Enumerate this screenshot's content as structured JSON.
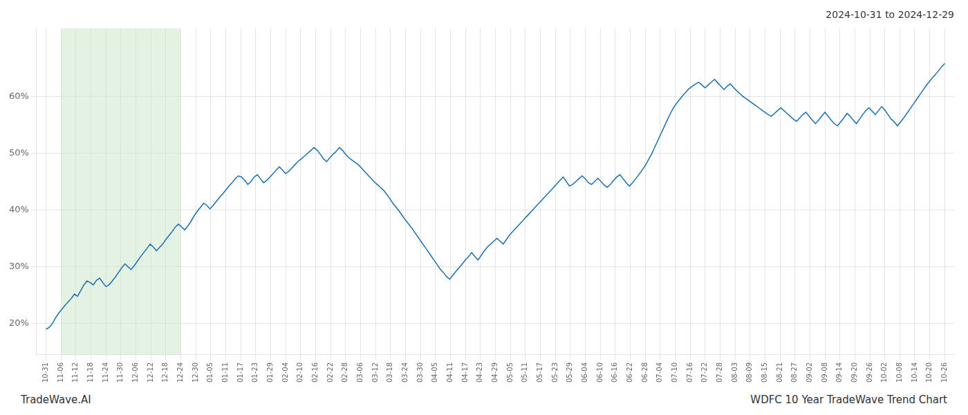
{
  "chart_data": {
    "type": "line",
    "title": "2024-10-31 to 2024-12-29",
    "annotations": [
      {
        "text": "TradeWave.AI"
      },
      {
        "text": "WDFC 10 Year TradeWave Trend Chart"
      }
    ],
    "color": "#1a6faf",
    "grid": true,
    "spans": [
      {
        "x": [
          4.75,
          42.75
        ],
        "color": "#c8e6c8"
      }
    ],
    "xlim": [
      -3,
      288
    ],
    "ylim": [
      0.145,
      0.72
    ],
    "yticks": [
      {
        "value": 0.2,
        "label": "20%"
      },
      {
        "value": 0.3,
        "label": "30%"
      },
      {
        "value": 0.4,
        "label": "40%"
      },
      {
        "value": 0.5,
        "label": "50%"
      },
      {
        "value": 0.6,
        "label": "60%"
      }
    ],
    "xticks": [
      {
        "value": 0,
        "label": "10-31"
      },
      {
        "value": 4.75,
        "label": "11-06"
      },
      {
        "value": 9.5,
        "label": "11-12"
      },
      {
        "value": 14.25,
        "label": "11-18"
      },
      {
        "value": 19,
        "label": "11-24"
      },
      {
        "value": 23.75,
        "label": "11-30"
      },
      {
        "value": 28.5,
        "label": "12-06"
      },
      {
        "value": 33.25,
        "label": "12-12"
      },
      {
        "value": 38,
        "label": "12-18"
      },
      {
        "value": 42.75,
        "label": "12-24"
      },
      {
        "value": 47.5,
        "label": "12-30"
      },
      {
        "value": 52.25,
        "label": "01-05"
      },
      {
        "value": 57,
        "label": "01-11"
      },
      {
        "value": 61.75,
        "label": "01-17"
      },
      {
        "value": 66.5,
        "label": "01-23"
      },
      {
        "value": 71.25,
        "label": "01-29"
      },
      {
        "value": 76,
        "label": "02-04"
      },
      {
        "value": 80.75,
        "label": "02-10"
      },
      {
        "value": 85.5,
        "label": "02-16"
      },
      {
        "value": 90.25,
        "label": "02-22"
      },
      {
        "value": 95,
        "label": "02-28"
      },
      {
        "value": 99.75,
        "label": "03-06"
      },
      {
        "value": 104.5,
        "label": "03-12"
      },
      {
        "value": 109.25,
        "label": "03-18"
      },
      {
        "value": 114,
        "label": "03-24"
      },
      {
        "value": 118.75,
        "label": "03-30"
      },
      {
        "value": 123.5,
        "label": "04-05"
      },
      {
        "value": 128.25,
        "label": "04-11"
      },
      {
        "value": 133,
        "label": "04-17"
      },
      {
        "value": 137.75,
        "label": "04-23"
      },
      {
        "value": 142.5,
        "label": "04-29"
      },
      {
        "value": 147.25,
        "label": "05-05"
      },
      {
        "value": 152,
        "label": "05-11"
      },
      {
        "value": 156.75,
        "label": "05-17"
      },
      {
        "value": 161.5,
        "label": "05-23"
      },
      {
        "value": 166.25,
        "label": "05-29"
      },
      {
        "value": 171,
        "label": "06-04"
      },
      {
        "value": 175.75,
        "label": "06-10"
      },
      {
        "value": 180.5,
        "label": "06-16"
      },
      {
        "value": 185.25,
        "label": "06-22"
      },
      {
        "value": 190,
        "label": "06-28"
      },
      {
        "value": 194.75,
        "label": "07-04"
      },
      {
        "value": 199.5,
        "label": "07-10"
      },
      {
        "value": 204.25,
        "label": "07-16"
      },
      {
        "value": 209,
        "label": "07-22"
      },
      {
        "value": 213.75,
        "label": "07-28"
      },
      {
        "value": 218.5,
        "label": "08-03"
      },
      {
        "value": 223.25,
        "label": "08-09"
      },
      {
        "value": 228,
        "label": "08-15"
      },
      {
        "value": 232.75,
        "label": "08-21"
      },
      {
        "value": 237.5,
        "label": "08-27"
      },
      {
        "value": 242.25,
        "label": "09-02"
      },
      {
        "value": 247,
        "label": "09-08"
      },
      {
        "value": 251.75,
        "label": "09-14"
      },
      {
        "value": 256.5,
        "label": "09-20"
      },
      {
        "value": 261.25,
        "label": "09-26"
      },
      {
        "value": 266,
        "label": "10-02"
      },
      {
        "value": 270.75,
        "label": "10-08"
      },
      {
        "value": 275.5,
        "label": "10-14"
      },
      {
        "value": 280.25,
        "label": "10-20"
      },
      {
        "value": 285,
        "label": "10-26"
      }
    ],
    "x": [
      0,
      1,
      2,
      3,
      4,
      5,
      6,
      7,
      8,
      9,
      10,
      11,
      12,
      13,
      14,
      15,
      16,
      17,
      18,
      19,
      20,
      21,
      22,
      23,
      24,
      25,
      26,
      27,
      28,
      29,
      30,
      31,
      32,
      33,
      34,
      35,
      36,
      37,
      38,
      39,
      40,
      41,
      42,
      43,
      44,
      45,
      46,
      47,
      48,
      49,
      50,
      51,
      52,
      53,
      54,
      55,
      56,
      57,
      58,
      59,
      60,
      61,
      62,
      63,
      64,
      65,
      66,
      67,
      68,
      69,
      70,
      71,
      72,
      73,
      74,
      75,
      76,
      77,
      78,
      79,
      80,
      81,
      82,
      83,
      84,
      85,
      86,
      87,
      88,
      89,
      90,
      91,
      92,
      93,
      94,
      95,
      96,
      97,
      98,
      99,
      100,
      101,
      102,
      103,
      104,
      105,
      106,
      107,
      108,
      109,
      110,
      111,
      112,
      113,
      114,
      115,
      116,
      117,
      118,
      119,
      120,
      121,
      122,
      123,
      124,
      125,
      126,
      127,
      128,
      129,
      130,
      131,
      132,
      133,
      134,
      135,
      136,
      137,
      138,
      139,
      140,
      141,
      142,
      143,
      144,
      145,
      146,
      147,
      148,
      149,
      150,
      151,
      152,
      153,
      154,
      155,
      156,
      157,
      158,
      159,
      160,
      161,
      162,
      163,
      164,
      165,
      166,
      167,
      168,
      169,
      170,
      171,
      172,
      173,
      174,
      175,
      176,
      177,
      178,
      179,
      180,
      181,
      182,
      183,
      184,
      185,
      186,
      187,
      188,
      189,
      190,
      191,
      192,
      193,
      194,
      195,
      196,
      197,
      198,
      199,
      200,
      201,
      202,
      203,
      204,
      205,
      206,
      207,
      208,
      209,
      210,
      211,
      212,
      213,
      214,
      215,
      216,
      217,
      218,
      219,
      220,
      221,
      222,
      223,
      224,
      225,
      226,
      227,
      228,
      229,
      230,
      231,
      232,
      233,
      234,
      235,
      236,
      237,
      238,
      239,
      240,
      241,
      242,
      243,
      244,
      245,
      246,
      247,
      248,
      249,
      250,
      251,
      252,
      253,
      254,
      255,
      256,
      257,
      258,
      259,
      260,
      261,
      262,
      263,
      264,
      265,
      266,
      267,
      268,
      269,
      270,
      271,
      272,
      273,
      274,
      275,
      276,
      277,
      278,
      279,
      280,
      281,
      282,
      283,
      284,
      285
    ],
    "values": [
      0.19,
      0.193,
      0.2,
      0.21,
      0.218,
      0.225,
      0.232,
      0.238,
      0.244,
      0.252,
      0.248,
      0.258,
      0.268,
      0.275,
      0.272,
      0.268,
      0.276,
      0.28,
      0.272,
      0.265,
      0.268,
      0.275,
      0.282,
      0.29,
      0.298,
      0.305,
      0.3,
      0.295,
      0.302,
      0.31,
      0.318,
      0.325,
      0.332,
      0.34,
      0.335,
      0.328,
      0.334,
      0.34,
      0.348,
      0.355,
      0.362,
      0.37,
      0.375,
      0.37,
      0.365,
      0.372,
      0.38,
      0.39,
      0.398,
      0.405,
      0.412,
      0.408,
      0.402,
      0.408,
      0.415,
      0.422,
      0.428,
      0.435,
      0.442,
      0.448,
      0.455,
      0.46,
      0.458,
      0.452,
      0.445,
      0.45,
      0.458,
      0.462,
      0.455,
      0.448,
      0.452,
      0.458,
      0.464,
      0.47,
      0.476,
      0.47,
      0.464,
      0.468,
      0.474,
      0.48,
      0.486,
      0.49,
      0.495,
      0.5,
      0.505,
      0.51,
      0.505,
      0.498,
      0.49,
      0.485,
      0.492,
      0.498,
      0.503,
      0.51,
      0.505,
      0.498,
      0.492,
      0.488,
      0.484,
      0.48,
      0.474,
      0.468,
      0.462,
      0.456,
      0.45,
      0.445,
      0.44,
      0.435,
      0.428,
      0.42,
      0.412,
      0.405,
      0.398,
      0.39,
      0.382,
      0.375,
      0.368,
      0.36,
      0.352,
      0.344,
      0.336,
      0.328,
      0.32,
      0.312,
      0.304,
      0.296,
      0.29,
      0.283,
      0.278,
      0.285,
      0.292,
      0.298,
      0.305,
      0.312,
      0.318,
      0.325,
      0.318,
      0.312,
      0.32,
      0.328,
      0.335,
      0.34,
      0.345,
      0.35,
      0.345,
      0.34,
      0.348,
      0.356,
      0.362,
      0.368,
      0.374,
      0.38,
      0.386,
      0.392,
      0.398,
      0.404,
      0.41,
      0.416,
      0.422,
      0.428,
      0.434,
      0.44,
      0.446,
      0.452,
      0.458,
      0.45,
      0.442,
      0.445,
      0.45,
      0.455,
      0.46,
      0.455,
      0.448,
      0.445,
      0.45,
      0.456,
      0.45,
      0.444,
      0.44,
      0.445,
      0.452,
      0.458,
      0.462,
      0.455,
      0.448,
      0.442,
      0.448,
      0.455,
      0.462,
      0.47,
      0.478,
      0.488,
      0.498,
      0.51,
      0.522,
      0.534,
      0.546,
      0.558,
      0.57,
      0.58,
      0.588,
      0.595,
      0.602,
      0.608,
      0.614,
      0.618,
      0.622,
      0.625,
      0.62,
      0.615,
      0.62,
      0.625,
      0.63,
      0.624,
      0.618,
      0.612,
      0.618,
      0.622,
      0.616,
      0.61,
      0.605,
      0.6,
      0.596,
      0.592,
      0.588,
      0.584,
      0.58,
      0.576,
      0.572,
      0.568,
      0.565,
      0.57,
      0.575,
      0.58,
      0.575,
      0.57,
      0.565,
      0.56,
      0.556,
      0.562,
      0.568,
      0.572,
      0.565,
      0.558,
      0.552,
      0.558,
      0.565,
      0.572,
      0.565,
      0.558,
      0.552,
      0.548,
      0.555,
      0.562,
      0.57,
      0.565,
      0.558,
      0.552,
      0.56,
      0.568,
      0.575,
      0.58,
      0.574,
      0.568,
      0.575,
      0.582,
      0.576,
      0.568,
      0.56,
      0.555,
      0.548,
      0.555,
      0.562,
      0.57,
      0.578,
      0.586,
      0.594,
      0.602,
      0.61,
      0.618,
      0.625,
      0.632,
      0.638,
      0.645,
      0.652,
      0.658
    ]
  }
}
